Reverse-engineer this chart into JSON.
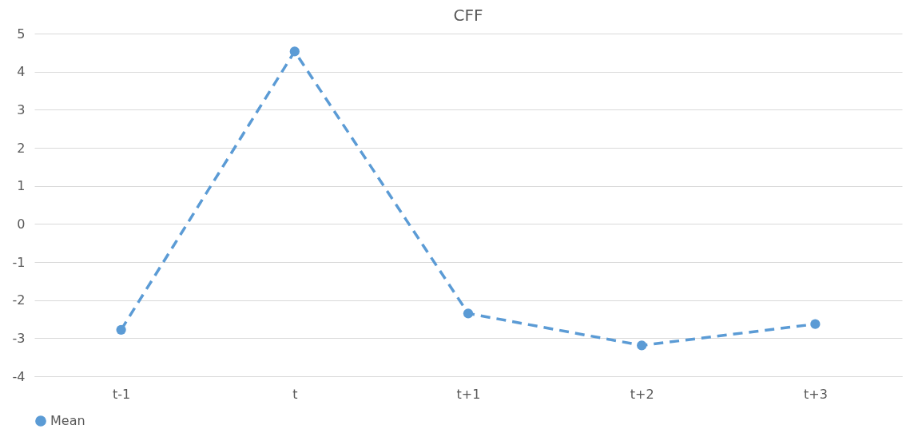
{
  "chart_data": {
    "type": "line",
    "title": "CFF",
    "categories": [
      "t-1",
      "t",
      "t+1",
      "t+2",
      "t+3"
    ],
    "series": [
      {
        "name": "Mean",
        "color": "#5b9bd5",
        "values": [
          -2.78,
          4.53,
          -2.35,
          -3.19,
          -2.63
        ]
      }
    ],
    "ylim": [
      -4,
      5
    ],
    "yticks": [
      -4,
      -3,
      -2,
      -1,
      0,
      1,
      2,
      3,
      4,
      5
    ],
    "grid": "y",
    "legend": "bottom",
    "marker": "circle",
    "line_style": "dashed"
  }
}
